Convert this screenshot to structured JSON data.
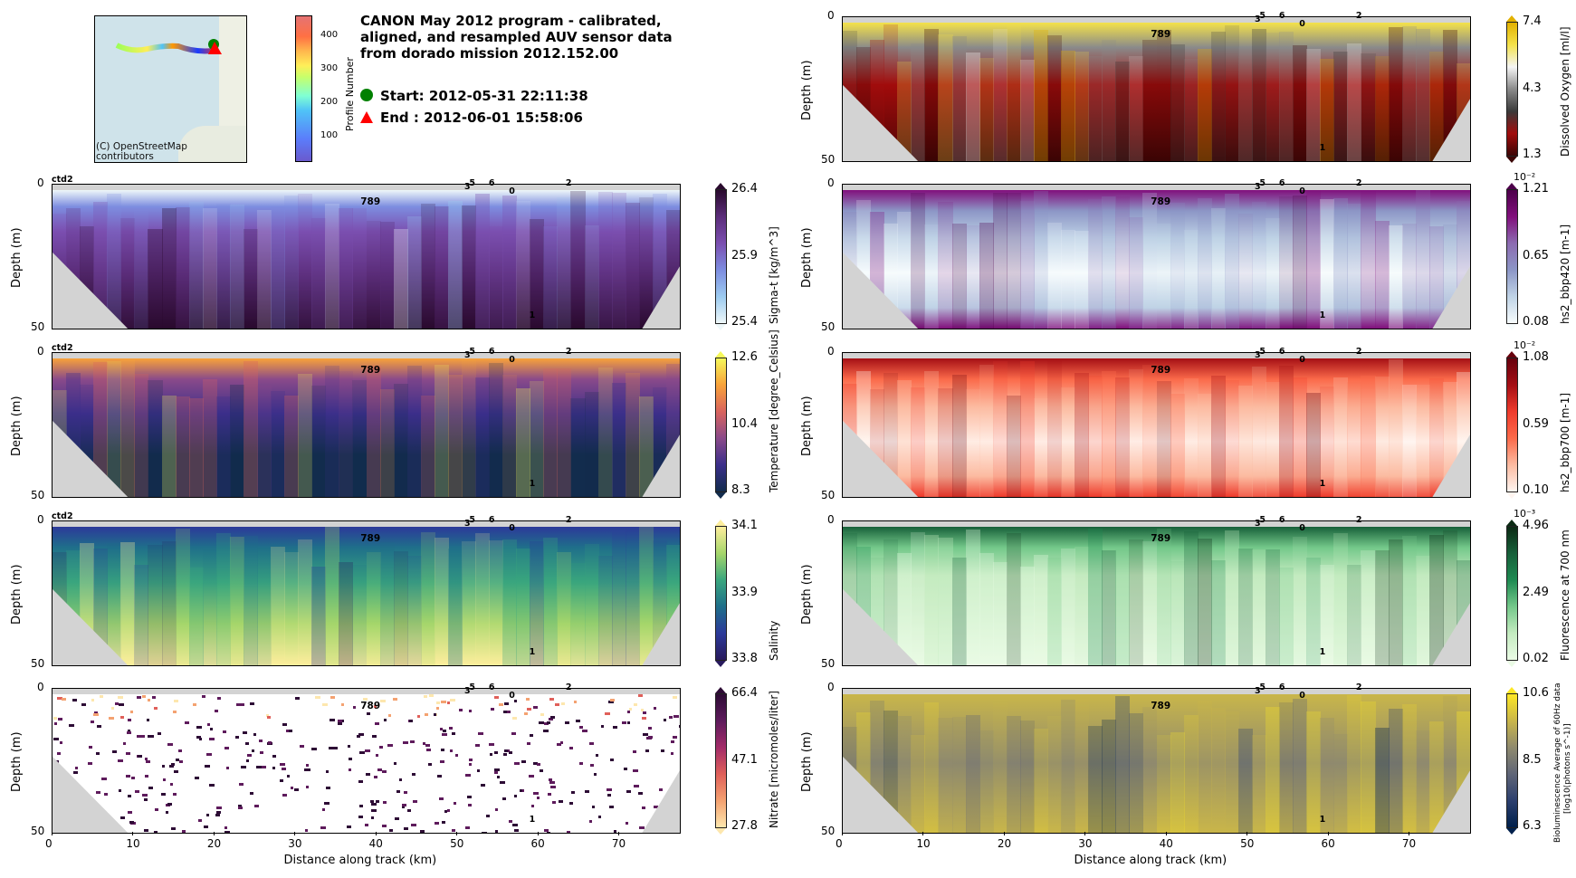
{
  "header": {
    "title_lines": [
      "CANON May 2012 program - calibrated,",
      "aligned, and resampled AUV sensor data",
      "from dorado mission 2012.152.00"
    ],
    "start_label": "Start: 2012-05-31 22:11:38",
    "end_label": "End  : 2012-06-01 15:58:06",
    "map_credit_line1": "(C) OpenStreetMap",
    "map_credit_line2": "contributors",
    "profile_colorbar": {
      "label": "Profile Number",
      "ticks": [
        "100",
        "200",
        "300",
        "400"
      ]
    }
  },
  "colors": {
    "start_marker": "#008000",
    "end_marker": "#ff0000",
    "ground": "#d3d3d3"
  },
  "chart_data": [
    {
      "type": "heatmap",
      "panel": "left-1",
      "variable": "Sigma-t",
      "colorbar_label": "Sigma-t [kg/m^3]",
      "colorbar_ticks": [
        "26.4",
        "25.9",
        "25.4"
      ],
      "colorbar_exponent": "",
      "cmap": [
        "#2a0a2e",
        "#5b2d7a",
        "#7b4fb0",
        "#7d8de0",
        "#9ccbf0",
        "#eef7f9"
      ],
      "ylabel": "Depth (m)",
      "ylim": [
        50,
        0
      ],
      "yticks": [
        "0",
        "50"
      ],
      "xlim": [
        0,
        77.5
      ],
      "xticks": [],
      "show_ctd2": true
    },
    {
      "type": "heatmap",
      "panel": "left-2",
      "variable": "Temperature",
      "colorbar_label": "Temperature [degree_Celsius]",
      "colorbar_ticks": [
        "12.6",
        "10.4",
        "8.3"
      ],
      "colorbar_exponent": "",
      "cmap": [
        "#f5f85a",
        "#f8a23a",
        "#d9645e",
        "#8a4a8a",
        "#3b2f8a",
        "#122c4d"
      ],
      "ylabel": "Depth (m)",
      "ylim": [
        50,
        0
      ],
      "yticks": [
        "0",
        "50"
      ],
      "xlim": [
        0,
        77.5
      ],
      "xticks": [],
      "show_ctd2": true
    },
    {
      "type": "heatmap",
      "panel": "left-3",
      "variable": "Salinity",
      "colorbar_label": "Salinity",
      "colorbar_ticks": [
        "34.1",
        "33.9",
        "33.8"
      ],
      "colorbar_exponent": "",
      "cmap": [
        "#fdee9d",
        "#a5d66b",
        "#3aa67e",
        "#1f6f8a",
        "#2c3a9a",
        "#281a5c"
      ],
      "ylabel": "Depth (m)",
      "ylim": [
        50,
        0
      ],
      "yticks": [
        "0",
        "50"
      ],
      "xlim": [
        0,
        77.5
      ],
      "xticks": [],
      "show_ctd2": true
    },
    {
      "type": "heatmap",
      "panel": "left-4",
      "variable": "Nitrate",
      "colorbar_label": "Nitrate [micromoles/liter]",
      "colorbar_ticks": [
        "66.4",
        "47.1",
        "27.8"
      ],
      "colorbar_exponent": "",
      "cmap": [
        "#2d0b35",
        "#5e1b5c",
        "#a32c69",
        "#e0605a",
        "#f4a271",
        "#fde7ae"
      ],
      "ylabel": "Depth (m)",
      "ylim": [
        50,
        0
      ],
      "yticks": [
        "0",
        "50"
      ],
      "xlim": [
        0,
        77.5
      ],
      "xticks": [
        "0",
        "10",
        "20",
        "30",
        "40",
        "50",
        "60",
        "70"
      ],
      "xlabel": "Distance along track (km)",
      "show_ctd2": false,
      "sparse": true
    },
    {
      "type": "heatmap",
      "panel": "right-0",
      "variable": "Dissolved Oxygen",
      "colorbar_label": "Dissolved Oxygen [ml/l]",
      "colorbar_ticks": [
        "7.4",
        "4.3",
        "1.3"
      ],
      "colorbar_exponent": "",
      "cmap": [
        "#e2b100",
        "#f4e24a",
        "#f5f5f5",
        "#8a8a8a",
        "#3a3a3a",
        "#a10c0c",
        "#3b0505"
      ],
      "ylabel": "Depth (m)",
      "ylim": [
        50,
        0
      ],
      "yticks": [
        "0",
        "50"
      ],
      "xlim": [
        0,
        77.5
      ],
      "xticks": [],
      "show_ctd2": false
    },
    {
      "type": "heatmap",
      "panel": "right-1",
      "variable": "hs2_bbp420",
      "colorbar_label": "hs2_bbp420 [m-1]",
      "colorbar_ticks": [
        "1.21",
        "0.65",
        "0.08"
      ],
      "colorbar_exponent": "10⁻²",
      "cmap": [
        "#4d004b",
        "#810f7c",
        "#8c6bb1",
        "#8c96c6",
        "#bfd3e6",
        "#f7fcfd"
      ],
      "ylabel": "Depth (m)",
      "ylim": [
        50,
        0
      ],
      "yticks": [
        "0",
        "50"
      ],
      "xlim": [
        0,
        77.5
      ],
      "xticks": [],
      "show_ctd2": false
    },
    {
      "type": "heatmap",
      "panel": "right-2",
      "variable": "hs2_bbp700",
      "colorbar_label": "hs2_bbp700 [m-1]",
      "colorbar_ticks": [
        "1.08",
        "0.59",
        "0.10"
      ],
      "colorbar_exponent": "10⁻²",
      "cmap": [
        "#67000d",
        "#a50f15",
        "#ef3b2c",
        "#fb6a4a",
        "#fcbba1",
        "#fff5f0"
      ],
      "ylabel": "Depth (m)",
      "ylim": [
        50,
        0
      ],
      "yticks": [
        "0",
        "50"
      ],
      "xlim": [
        0,
        77.5
      ],
      "xticks": [],
      "show_ctd2": false
    },
    {
      "type": "heatmap",
      "panel": "right-3",
      "variable": "Fluorescence at 700 nm",
      "colorbar_label": "Fluorescence at 700 nm",
      "colorbar_ticks": [
        "4.96",
        "2.49",
        "0.02"
      ],
      "colorbar_exponent": "10⁻³",
      "cmap": [
        "#0b2a14",
        "#17603a",
        "#1e8a52",
        "#74c88a",
        "#c4ebc0",
        "#eafbe5"
      ],
      "ylabel": "Depth (m)",
      "ylim": [
        50,
        0
      ],
      "yticks": [
        "0",
        "50"
      ],
      "xlim": [
        0,
        77.5
      ],
      "xticks": [],
      "show_ctd2": false
    },
    {
      "type": "heatmap",
      "panel": "right-4",
      "variable": "Bioluminescence",
      "colorbar_label": "Bioluminescence Average of 60Hz data",
      "colorbar_label2": "[log10(photons s^-1)]",
      "colorbar_ticks": [
        "10.6",
        "8.5",
        "6.3"
      ],
      "colorbar_exponent": "",
      "cmap": [
        "#fde725",
        "#c9b64a",
        "#8f8a6e",
        "#5f6577",
        "#2c3f6e",
        "#00204c"
      ],
      "ylabel": "Depth (m)",
      "ylim": [
        50,
        0
      ],
      "yticks": [
        "0",
        "50"
      ],
      "xlim": [
        0,
        77.5
      ],
      "xticks": [
        "0",
        "10",
        "20",
        "30",
        "40",
        "50",
        "60",
        "70"
      ],
      "xlabel": "Distance along track (km)",
      "show_ctd2": false
    }
  ],
  "annotations": {
    "ctd2": "ctd2",
    "top_marks": [
      {
        "label": "3",
        "x_km": 51.0
      },
      {
        "label": "5",
        "x_km": 51.6
      },
      {
        "label": "6",
        "x_km": 54.0
      },
      {
        "label": "0",
        "x_km": 56.5
      },
      {
        "label": "2",
        "x_km": 63.5
      }
    ],
    "mid_mark": {
      "label": "789",
      "x_km": 39.5
    },
    "bottom_mark": {
      "label": "1",
      "x_km": 59.0
    }
  }
}
